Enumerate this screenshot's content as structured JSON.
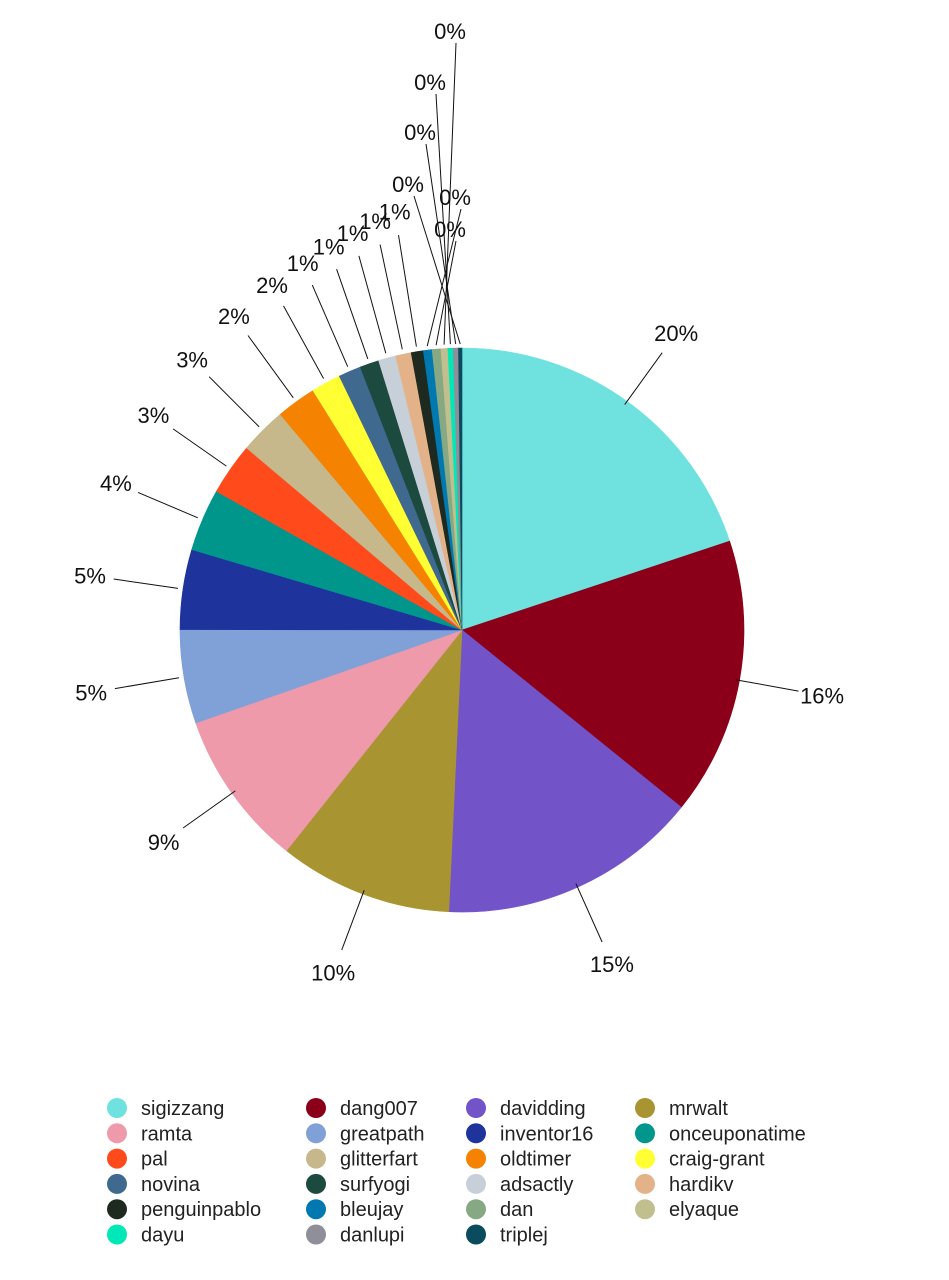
{
  "chart_data": {
    "type": "pie",
    "title": "",
    "legend_position": "bottom",
    "labels_show": "percent",
    "series": [
      {
        "name": "sigizzang",
        "value": 20,
        "label": "20%",
        "color": "#6fe2df"
      },
      {
        "name": "dang007",
        "value": 16,
        "label": "16%",
        "color": "#8b0018"
      },
      {
        "name": "davidding",
        "value": 15,
        "label": "15%",
        "color": "#7353c8"
      },
      {
        "name": "mrwalt",
        "value": 10,
        "label": "10%",
        "color": "#a89532"
      },
      {
        "name": "ramta",
        "value": 9,
        "label": "9%",
        "color": "#ee9aaa"
      },
      {
        "name": "greatpath",
        "value": 5.4,
        "label": "5%",
        "color": "#80a0d8"
      },
      {
        "name": "inventor16",
        "value": 4.6,
        "label": "5%",
        "color": "#1e349c"
      },
      {
        "name": "onceuponatime",
        "value": 3.6,
        "label": "4%",
        "color": "#00968c"
      },
      {
        "name": "pal",
        "value": 3.0,
        "label": "3%",
        "color": "#ff4a1c"
      },
      {
        "name": "glitterfart",
        "value": 2.7,
        "label": "3%",
        "color": "#c6b88b"
      },
      {
        "name": "oldtimer",
        "value": 2.3,
        "label": "2%",
        "color": "#f58200"
      },
      {
        "name": "craig-grant",
        "value": 1.7,
        "label": "2%",
        "color": "#ffff33"
      },
      {
        "name": "novina",
        "value": 1.3,
        "label": "1%",
        "color": "#3f698e"
      },
      {
        "name": "surfyogi",
        "value": 1.1,
        "label": "1%",
        "color": "#1d4a3e"
      },
      {
        "name": "adsactly",
        "value": 1.0,
        "label": "1%",
        "color": "#c7d0d8"
      },
      {
        "name": "hardikv",
        "value": 0.9,
        "label": "1%",
        "color": "#e3b288"
      },
      {
        "name": "penguinpablo",
        "value": 0.7,
        "label": "1%",
        "color": "#1e2a20"
      },
      {
        "name": "bleujay",
        "value": 0.5,
        "label": "0%",
        "color": "#0078b0"
      },
      {
        "name": "dan",
        "value": 0.5,
        "label": "0%",
        "color": "#86a882"
      },
      {
        "name": "elyaque",
        "value": 0.4,
        "label": "0%",
        "color": "#c2bf8f"
      },
      {
        "name": "dayu",
        "value": 0.3,
        "label": "0%",
        "color": "#00e8b7"
      },
      {
        "name": "danlupi",
        "value": 0.3,
        "label": "0%",
        "color": "#8e8f99"
      },
      {
        "name": "triplej",
        "value": 0.2,
        "label": "0%",
        "color": "#0a4b5d"
      }
    ],
    "legend_order": [
      "sigizzang",
      "dang007",
      "davidding",
      "mrwalt",
      "ramta",
      "greatpath",
      "inventor16",
      "onceuponatime",
      "pal",
      "glitterfart",
      "oldtimer",
      "craig-grant",
      "novina",
      "surfyogi",
      "adsactly",
      "hardikv",
      "penguinpablo",
      "bleujay",
      "dan",
      "elyaque",
      "dayu",
      "danlupi",
      "triplej"
    ]
  }
}
